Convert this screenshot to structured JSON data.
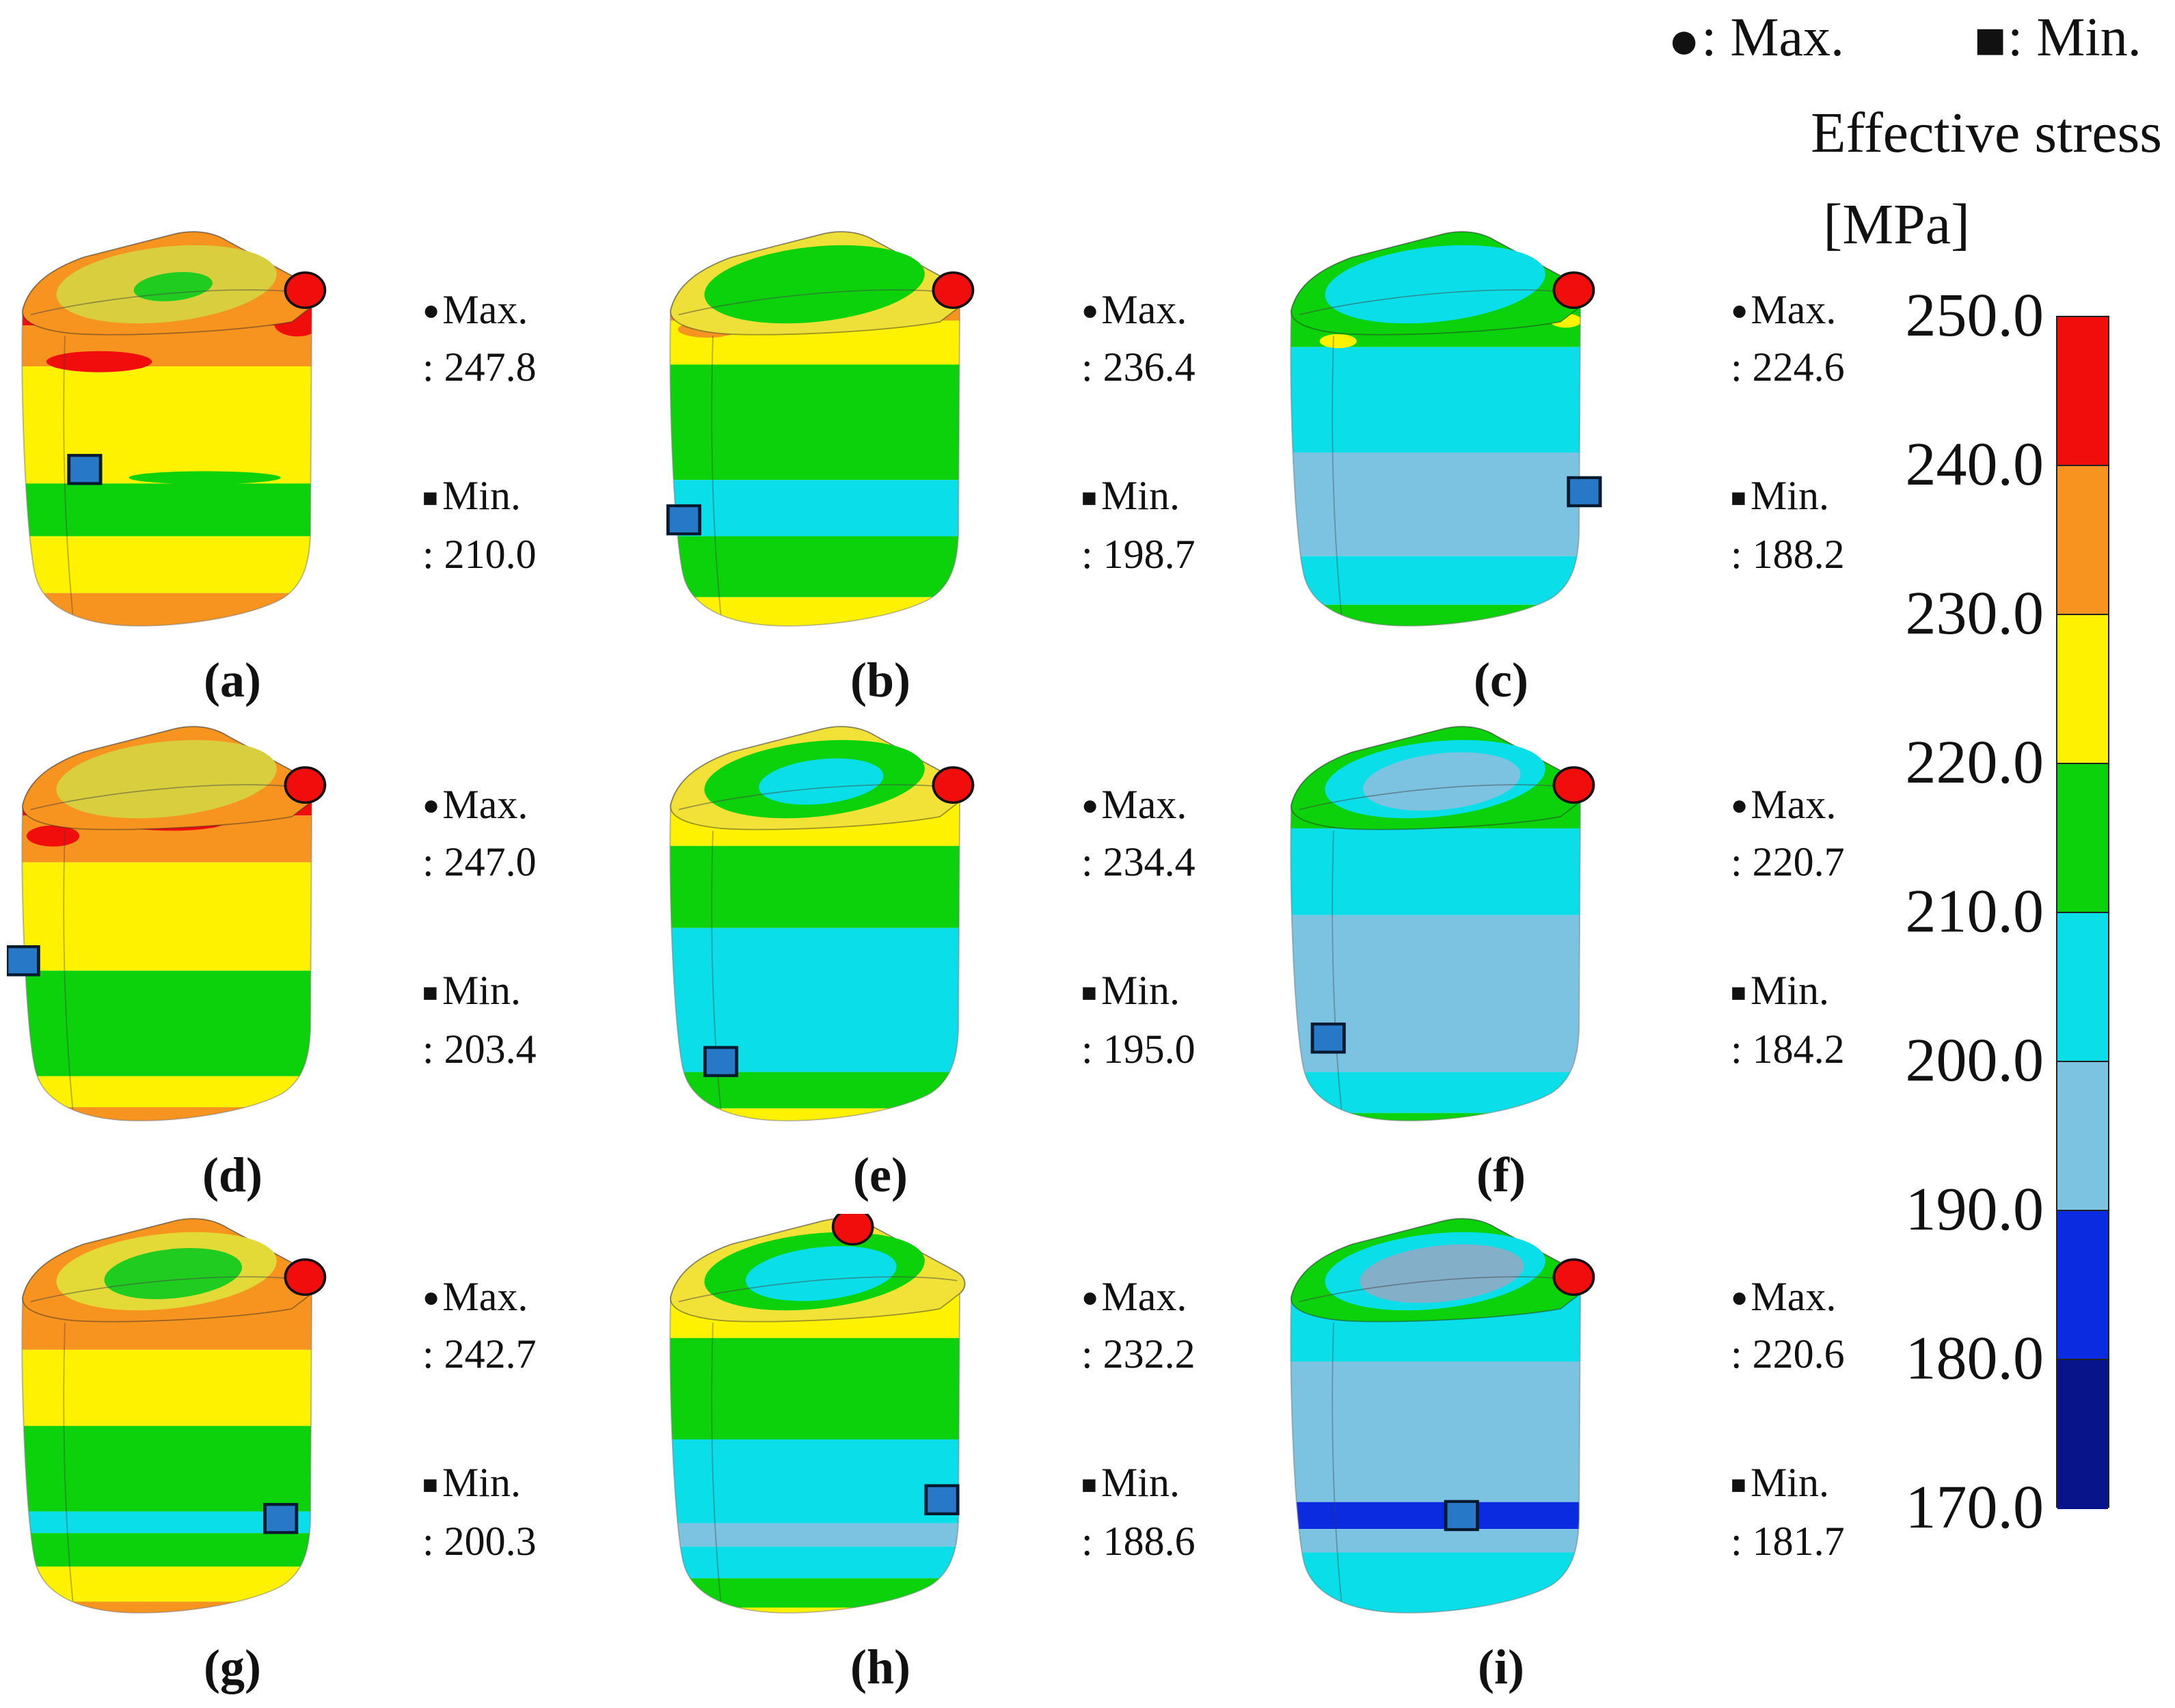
{
  "legend": {
    "max_item": ": Max.",
    "min_item": ": Min.",
    "title": "Effective stress",
    "unit": "[MPa]"
  },
  "marker_glyphs": {
    "max": "●",
    "min": "■"
  },
  "marker_colors": {
    "max": "#F20D0D",
    "min": "#2878C8"
  },
  "panel_text": {
    "max_label": "Max.",
    "min_label": "Min."
  },
  "colorbar": {
    "colors": [
      "#F20D0D",
      "#F79420",
      "#FFF200",
      "#0BD20B",
      "#0ADEE8",
      "#7CC3E2",
      "#0A2BE0",
      "#081489"
    ],
    "tick_labels": [
      "250.0",
      "240.0",
      "230.0",
      "220.0",
      "210.0",
      "200.0",
      "190.0",
      "180.0",
      "170.0"
    ]
  },
  "panels": [
    {
      "id": "a",
      "label": "(a)",
      "max_value": ": 247.8",
      "min_value": ": 210.0",
      "art": {
        "top": {
          "rim": "#F79420",
          "big": "#D8CE3E",
          "small": "#1FCC1F",
          "sr": [
            60,
            24
          ]
        },
        "bands": [
          [
            "#F20D0D",
            100,
            168
          ],
          [
            "#F79420",
            168,
            238
          ],
          [
            "#FFF200",
            238,
            438
          ],
          [
            "#0BD20B",
            438,
            528
          ],
          [
            "#FFF200",
            528,
            625
          ],
          [
            "#F79420",
            625,
            700
          ]
        ],
        "patches": [
          [
            140,
            230,
            80,
            18,
            "#F20D0D"
          ],
          [
            440,
            165,
            35,
            22,
            "#F20D0D"
          ],
          [
            300,
            428,
            115,
            11,
            "#0BD20B"
          ]
        ],
        "max_marker": [
          452,
          108
        ],
        "min_marker": [
          118,
          414
        ]
      }
    },
    {
      "id": "b",
      "label": "(b)",
      "max_value": ": 236.4",
      "min_value": ": 198.7",
      "art": {
        "top": {
          "rim": "#EFDF39",
          "big": "#0BD20B",
          "small": null,
          "sr": [
            0,
            0
          ]
        },
        "bands": [
          [
            "#F79420",
            100,
            160
          ],
          [
            "#FFF200",
            160,
            235
          ],
          [
            "#0BD20B",
            235,
            432
          ],
          [
            "#0ADEE8",
            432,
            528
          ],
          [
            "#0BD20B",
            528,
            632
          ],
          [
            "#FFF200",
            632,
            700
          ]
        ],
        "patches": [
          [
            80,
            175,
            45,
            14,
            "#F79420"
          ]
        ],
        "max_marker": [
          452,
          108
        ],
        "min_marker": [
          44,
          500
        ]
      }
    },
    {
      "id": "c",
      "label": "(c)",
      "max_value": ": 224.6",
      "min_value": ": 188.2",
      "art": {
        "top": {
          "rim": "#0BD20B",
          "big": "#0ADEE8",
          "small": null,
          "sr": [
            0,
            0
          ]
        },
        "bands": [
          [
            "#0BD20B",
            100,
            205
          ],
          [
            "#0ADEE8",
            205,
            385
          ],
          [
            "#7CC3E2",
            385,
            562
          ],
          [
            "#0ADEE8",
            562,
            645
          ],
          [
            "#0BD20B",
            645,
            700
          ]
        ],
        "patches": [
          [
            95,
            195,
            28,
            12,
            "#FFF200"
          ],
          [
            440,
            160,
            24,
            12,
            "#FFF200"
          ]
        ],
        "max_marker": [
          452,
          108
        ],
        "min_marker": [
          468,
          452
        ]
      }
    },
    {
      "id": "d",
      "label": "(d)",
      "max_value": ": 247.0",
      "min_value": ": 203.4",
      "art": {
        "top": {
          "rim": "#F79420",
          "big": "#D8CE3E",
          "small": null,
          "sr": [
            0,
            0
          ]
        },
        "bands": [
          [
            "#F20D0D",
            100,
            160
          ],
          [
            "#F79420",
            160,
            240
          ],
          [
            "#FFF200",
            240,
            425
          ],
          [
            "#0BD20B",
            425,
            605
          ],
          [
            "#FFF200",
            605,
            658
          ],
          [
            "#F79420",
            658,
            700
          ]
        ],
        "patches": [
          [
            70,
            195,
            40,
            18,
            "#F20D0D"
          ],
          [
            250,
            172,
            80,
            14,
            "#F20D0D"
          ]
        ],
        "max_marker": [
          452,
          108
        ],
        "min_marker": [
          24,
          408
        ]
      }
    },
    {
      "id": "e",
      "label": "(e)",
      "max_value": ": 234.4",
      "min_value": ": 195.0",
      "art": {
        "top": {
          "rim": "#F2E238",
          "big": "#0BD20B",
          "small": "#0ADEE8",
          "sr": [
            95,
            38
          ]
        },
        "bands": [
          [
            "#FFF200",
            100,
            212
          ],
          [
            "#0BD20B",
            212,
            352
          ],
          [
            "#0ADEE8",
            352,
            598
          ],
          [
            "#0BD20B",
            598,
            660
          ],
          [
            "#FFF200",
            660,
            700
          ]
        ],
        "patches": [],
        "max_marker": [
          452,
          108
        ],
        "min_marker": [
          100,
          580
        ]
      }
    },
    {
      "id": "f",
      "label": "(f)",
      "max_value": ": 220.7",
      "min_value": ": 184.2",
      "art": {
        "top": {
          "rim": "#0BD20B",
          "big": "#0ADEE8",
          "small": "#7CC3E2",
          "sr": [
            120,
            48
          ]
        },
        "bands": [
          [
            "#0BD20B",
            100,
            182
          ],
          [
            "#0ADEE8",
            182,
            330
          ],
          [
            "#7CC3E2",
            330,
            598
          ],
          [
            "#0ADEE8",
            598,
            668
          ],
          [
            "#0BD20B",
            668,
            700
          ]
        ],
        "patches": [],
        "max_marker": [
          452,
          108
        ],
        "min_marker": [
          80,
          540
        ]
      }
    },
    {
      "id": "g",
      "label": "(g)",
      "max_value": ": 242.7",
      "min_value": ": 200.3",
      "art": {
        "top": {
          "rim": "#F79420",
          "big": "#E4DA37",
          "small": "#1FCC1F",
          "sr": [
            105,
            42
          ]
        },
        "bands": [
          [
            "#F79420",
            100,
            232
          ],
          [
            "#FFF200",
            232,
            362
          ],
          [
            "#0BD20B",
            362,
            508
          ],
          [
            "#0ADEE8",
            508,
            545
          ],
          [
            "#0BD20B",
            545,
            602
          ],
          [
            "#FFF200",
            602,
            662
          ],
          [
            "#F79420",
            662,
            700
          ]
        ],
        "patches": [],
        "max_marker": [
          452,
          108
        ],
        "min_marker": [
          415,
          520
        ]
      }
    },
    {
      "id": "h",
      "label": "(h)",
      "max_value": ": 232.2",
      "min_value": ": 188.6",
      "art": {
        "top": {
          "rim": "#F2E238",
          "big": "#0BD20B",
          "small": "#0ADEE8",
          "sr": [
            115,
            45
          ]
        },
        "bands": [
          [
            "#FFF200",
            100,
            212
          ],
          [
            "#0BD20B",
            212,
            385
          ],
          [
            "#0ADEE8",
            385,
            528
          ],
          [
            "#7CC3E2",
            528,
            568
          ],
          [
            "#0ADEE8",
            568,
            622
          ],
          [
            "#0BD20B",
            622,
            672
          ],
          [
            "#FFF200",
            672,
            700
          ]
        ],
        "patches": [],
        "max_marker": [
          300,
          22
        ],
        "min_marker": [
          435,
          488
        ]
      }
    },
    {
      "id": "i",
      "label": "(i)",
      "max_value": ": 220.6",
      "min_value": ": 181.7",
      "art": {
        "top": {
          "rim": "#0BD20B",
          "big": "#0ADEE8",
          "small": "#84AFC9",
          "sr": [
            125,
            48
          ]
        },
        "bands": [
          [
            "#0ADEE8",
            100,
            252
          ],
          [
            "#7CC3E2",
            252,
            492
          ],
          [
            "#0A2BE0",
            492,
            538
          ],
          [
            "#7CC3E2",
            538,
            578
          ],
          [
            "#0ADEE8",
            578,
            700
          ]
        ],
        "patches": [],
        "max_marker": [
          452,
          108
        ],
        "min_marker": [
          282,
          515
        ]
      }
    }
  ]
}
